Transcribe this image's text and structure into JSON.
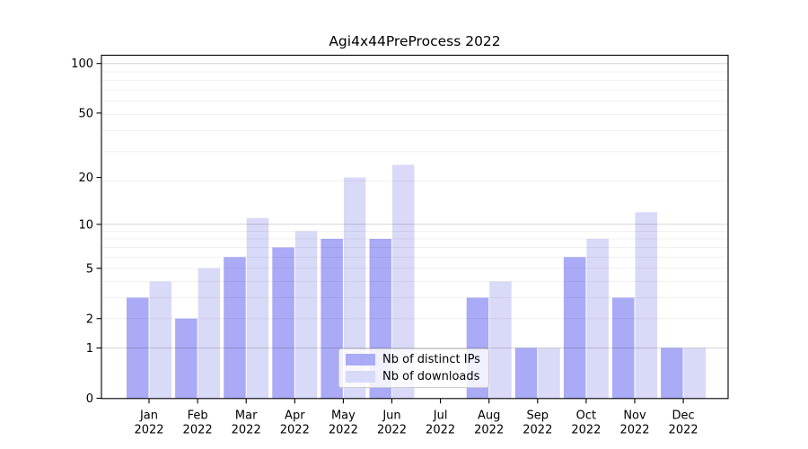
{
  "chart_data": {
    "type": "bar",
    "title": "Agi4x44PreProcess 2022",
    "months": [
      "Jan",
      "Feb",
      "Mar",
      "Apr",
      "May",
      "Jun",
      "Jul",
      "Aug",
      "Sep",
      "Oct",
      "Nov",
      "Dec"
    ],
    "year": "2022",
    "series": [
      {
        "name": "Nb of distinct IPs",
        "color": "#aaaaf7",
        "values": [
          3,
          2,
          6,
          7,
          8,
          8,
          0,
          3,
          1,
          6,
          3,
          1
        ]
      },
      {
        "name": "Nb of downloads",
        "color": "#d9d9f8",
        "values": [
          4,
          5,
          11,
          9,
          20,
          24,
          0,
          4,
          1,
          8,
          12,
          1
        ]
      }
    ],
    "yscale": "log10(value+1)",
    "y_ticks": [
      0,
      1,
      2,
      5,
      10,
      20,
      50,
      100
    ],
    "ylim": [
      0,
      112
    ],
    "xlabel": "",
    "ylabel": "",
    "legend_position": "lower center",
    "grid": "horizontal"
  }
}
